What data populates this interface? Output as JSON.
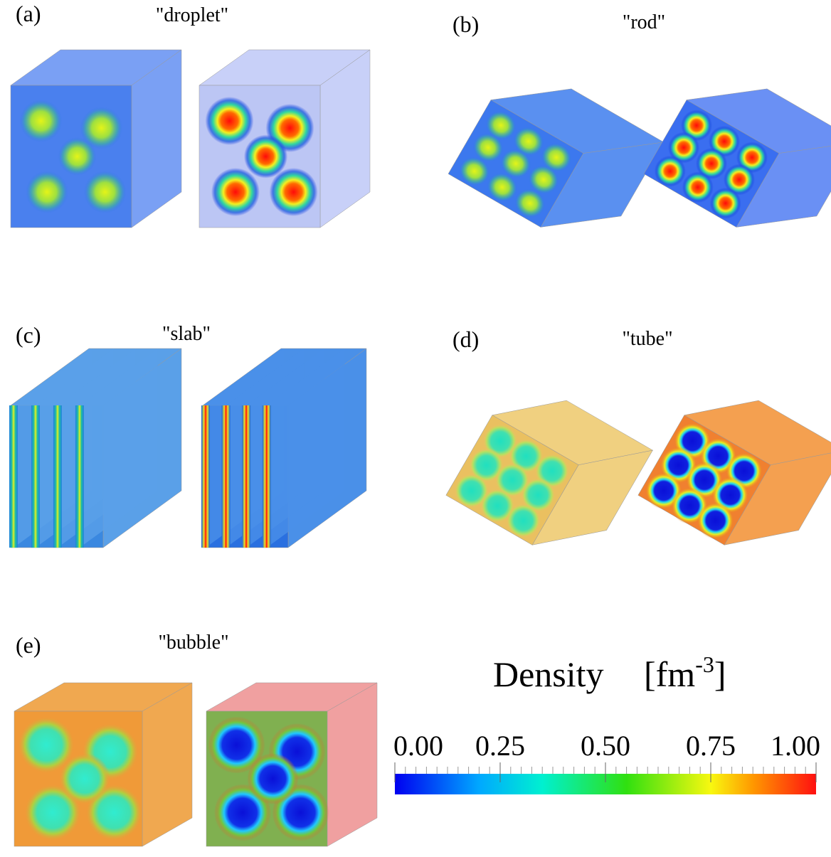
{
  "panels": [
    {
      "label": "(a)",
      "title": "\"droplet\""
    },
    {
      "label": "(b)",
      "title": "\"rod\""
    },
    {
      "label": "(c)",
      "title": "\"slab\""
    },
    {
      "label": "(d)",
      "title": "\"tube\""
    },
    {
      "label": "(e)",
      "title": "\"bubble\""
    }
  ],
  "colorbar": {
    "title": "Density",
    "unit": [
      "[fm",
      "-3",
      "]"
    ],
    "range": [
      0,
      1
    ],
    "minor_step": 0.025,
    "ticks": [
      {
        "value": 0,
        "label": "0.00"
      },
      {
        "value": 0.25,
        "label": "0.25"
      },
      {
        "value": 0.5,
        "label": "0.50"
      },
      {
        "value": 0.75,
        "label": "0.75"
      },
      {
        "value": 1,
        "label": "1.00"
      }
    ]
  }
}
